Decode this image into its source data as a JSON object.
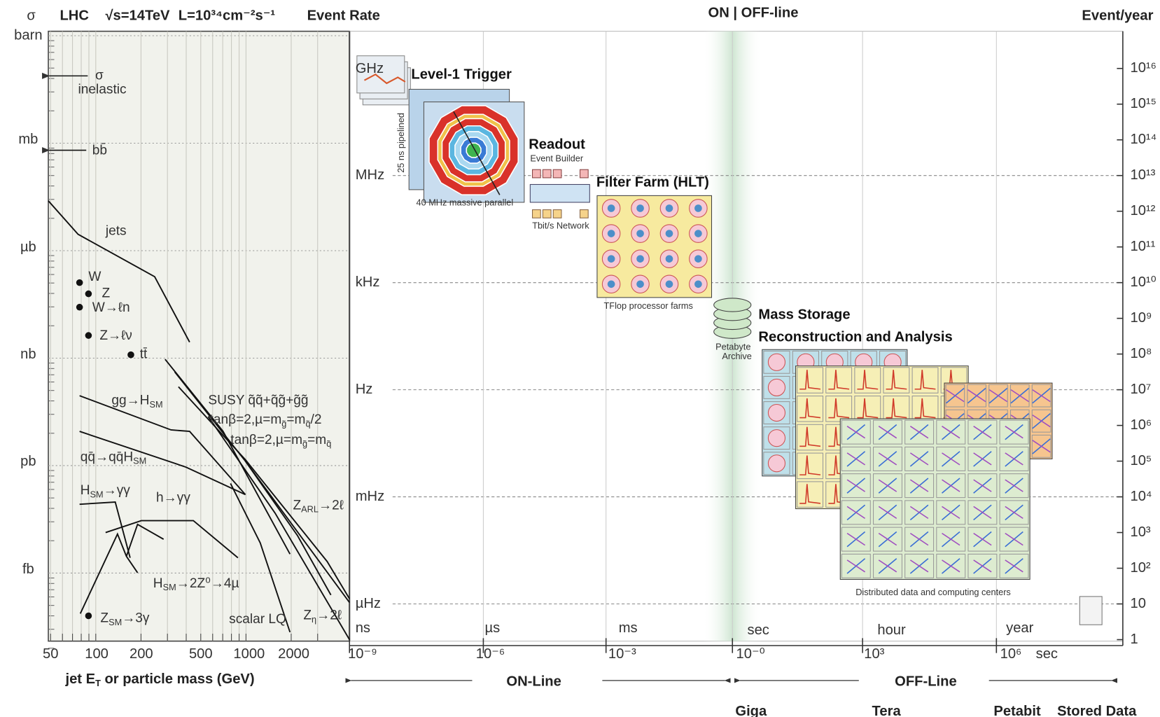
{
  "header": {
    "sigma": "σ",
    "lhc": "LHC",
    "energy": "√s=14TeV",
    "luminosity": "L=10³⁴cm⁻²s⁻¹",
    "event_rate": "Event Rate",
    "on_off_line": "ON | OFF-line",
    "event_year": "Event/year"
  },
  "cross_section_panel": {
    "y_labels": [
      "barn",
      "mb",
      "µb",
      "nb",
      "pb",
      "fb"
    ],
    "x_ticks": [
      "50",
      "100",
      "200",
      "500",
      "1000",
      "2000"
    ],
    "x_label": [
      {
        "text": "jet E"
      },
      {
        "sub": "T"
      },
      {
        "text": " or particle mass (GeV)"
      }
    ],
    "processes": [
      [
        {
          "text": "σ"
        }
      ],
      [
        {
          "text": "inelastic"
        }
      ],
      [
        {
          "text": "bb̄"
        }
      ],
      [
        {
          "text": "jets"
        }
      ],
      [
        {
          "text": "W"
        }
      ],
      [
        {
          "text": "Z"
        }
      ],
      [
        {
          "text": "W→ℓn"
        }
      ],
      [
        {
          "text": "Z→ℓν"
        }
      ],
      [
        {
          "text": "tt̄"
        }
      ],
      [
        {
          "text": "gg→H"
        },
        {
          "sub": "SM"
        }
      ],
      [
        {
          "text": "SUSY q̃q̃+q̃g̃+g̃g̃"
        }
      ],
      [
        {
          "text": "tanβ=2,µ=m"
        },
        {
          "sub": "g̃"
        },
        {
          "text": "=m"
        },
        {
          "sub": "q̃"
        },
        {
          "text": "/2"
        }
      ],
      [
        {
          "text": "tanβ=2,µ=m"
        },
        {
          "sub": "g̃"
        },
        {
          "text": "=m"
        },
        {
          "sub": "q̃"
        }
      ],
      [
        {
          "text": "qq̄→qq̄H"
        },
        {
          "sub": "SM"
        }
      ],
      [
        {
          "text": "H"
        },
        {
          "sub": "SM"
        },
        {
          "text": "→γγ"
        }
      ],
      [
        {
          "text": "h→γγ"
        }
      ],
      [
        {
          "text": "Z"
        },
        {
          "sub": "ARL"
        },
        {
          "text": "→2ℓ"
        }
      ],
      [
        {
          "text": "H"
        },
        {
          "sub": "SM"
        },
        {
          "text": "→2Z⁰→4µ"
        }
      ],
      [
        {
          "text": "Z"
        },
        {
          "sub": "SM"
        },
        {
          "text": "→3γ"
        }
      ],
      [
        {
          "text": "scalar LQ"
        }
      ],
      [
        {
          "text": "Z"
        },
        {
          "sub": "η"
        },
        {
          "text": "→2ℓ"
        }
      ]
    ]
  },
  "rate_panel": {
    "rate_labels": [
      "GHz",
      "MHz",
      "kHz",
      "Hz",
      "mHz",
      "µHz"
    ],
    "events_per_year": [
      "10¹⁶",
      "10¹⁵",
      "10¹⁴",
      "10¹³",
      "10¹²",
      "10¹¹",
      "10¹⁰",
      "10⁹",
      "10⁸",
      "10⁷",
      "10⁶",
      "10⁵",
      "10⁴",
      "10³",
      "10²",
      "10",
      "1"
    ],
    "time_labels": [
      "ns",
      "µs",
      "ms",
      "sec",
      "hour",
      "year"
    ],
    "time_exponents": [
      "10⁻⁹",
      "10⁻⁶",
      "10⁻³",
      "10⁻⁰",
      "10³",
      "10⁶",
      "sec"
    ],
    "stages": {
      "level1": {
        "title": "Level-1 Trigger",
        "pipeline": "25 ns pipelined",
        "caption": "40 MHz massive parallel"
      },
      "readout": {
        "title": "Readout",
        "subtitle": "Event Builder",
        "caption": "Tbit/s Network"
      },
      "filter_farm": {
        "title": "Filter Farm (HLT)",
        "caption": "TFlop  processor farms"
      },
      "archive": {
        "caption": [
          "Petabyte",
          "Archive"
        ]
      },
      "mass_storage": {
        "title": "Mass Storage",
        "subtitle": "Reconstruction and Analysis",
        "caption": "Distributed data and computing centers"
      }
    }
  },
  "footer": {
    "on_line": "ON-Line",
    "off_line": "OFF-Line",
    "giga": "Giga",
    "tera": "Tera",
    "petabit": "Petabit",
    "stored_data": "Stored Data"
  }
}
